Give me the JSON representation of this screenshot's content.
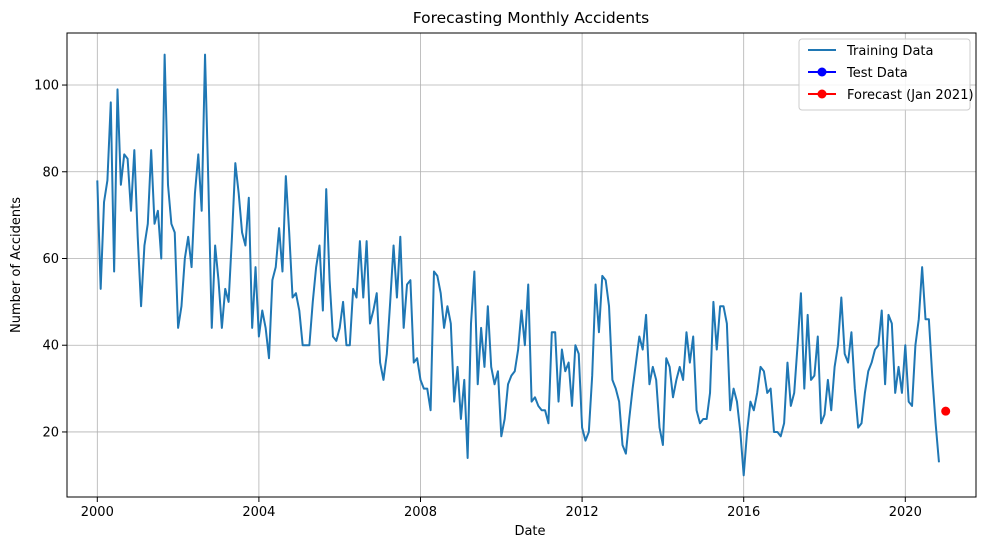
{
  "chart_data": {
    "type": "line",
    "title": "Forecasting Monthly Accidents",
    "xlabel": "Date",
    "ylabel": "Number of Accidents",
    "grid": true,
    "legend_position": "top-right",
    "xlim": [
      1999.25,
      2021.75
    ],
    "ylim": [
      5,
      112
    ],
    "x_ticks": [
      2000,
      2004,
      2008,
      2012,
      2016,
      2020
    ],
    "y_ticks": [
      20,
      40,
      60,
      80,
      100
    ],
    "colors": {
      "training": "#1f77b4",
      "test": "#0000ff",
      "forecast": "#ff0000"
    },
    "series": [
      {
        "name": "Training Data",
        "start": "2000-01",
        "frequency": "monthly",
        "values": [
          78,
          53,
          73,
          78,
          96,
          57,
          99,
          77,
          84,
          83,
          71,
          85,
          65,
          49,
          63,
          68,
          85,
          68,
          71,
          60,
          107,
          77,
          68,
          66,
          44,
          49,
          60,
          65,
          58,
          75,
          84,
          71,
          107,
          77,
          44,
          63,
          55,
          44,
          53,
          50,
          65,
          82,
          75,
          66,
          63,
          74,
          44,
          58,
          42,
          48,
          44,
          37,
          55,
          58,
          67,
          57,
          79,
          66,
          51,
          52,
          48,
          40,
          40,
          40,
          50,
          58,
          63,
          48,
          76,
          55,
          42,
          41,
          44,
          50,
          40,
          40,
          53,
          51,
          64,
          51,
          64,
          45,
          48,
          52,
          36,
          32,
          38,
          50,
          63,
          51,
          65,
          44,
          54,
          55,
          36,
          37,
          32,
          30,
          30,
          25,
          57,
          56,
          52,
          44,
          49,
          45,
          27,
          35,
          23,
          32,
          14,
          45,
          57,
          31,
          44,
          35,
          49,
          35,
          31,
          34,
          19,
          23,
          31,
          33,
          34,
          39,
          48,
          40,
          54,
          27,
          28,
          26,
          25,
          25,
          22,
          43,
          43,
          27,
          39,
          34,
          36,
          26,
          40,
          38,
          21,
          18,
          20,
          33,
          54,
          43,
          56,
          55,
          49,
          32,
          30,
          27,
          17,
          15,
          23,
          30,
          36,
          42,
          39,
          47,
          31,
          35,
          32,
          21,
          17,
          37,
          35,
          28,
          32,
          35,
          32,
          43,
          36,
          42,
          25,
          22,
          23,
          23,
          29,
          50,
          39,
          49,
          49,
          45,
          25,
          30,
          27,
          20,
          10,
          20,
          27,
          25,
          29,
          35,
          34,
          29,
          30,
          20,
          20,
          19,
          22,
          36,
          26,
          29,
          40,
          52,
          30,
          47,
          32,
          33,
          42,
          22,
          24,
          32,
          25,
          35,
          40,
          51,
          38,
          36,
          43,
          30,
          21,
          22,
          29,
          34,
          36,
          39,
          40,
          48,
          31,
          47,
          45,
          29,
          35,
          29,
          40,
          27,
          26,
          40,
          46,
          58,
          46,
          46,
          33,
          22,
          13
        ]
      },
      {
        "name": "Test Data",
        "values": []
      },
      {
        "name": "Forecast (Jan 2021)",
        "x": "2021-01",
        "value": 24.8
      }
    ]
  }
}
